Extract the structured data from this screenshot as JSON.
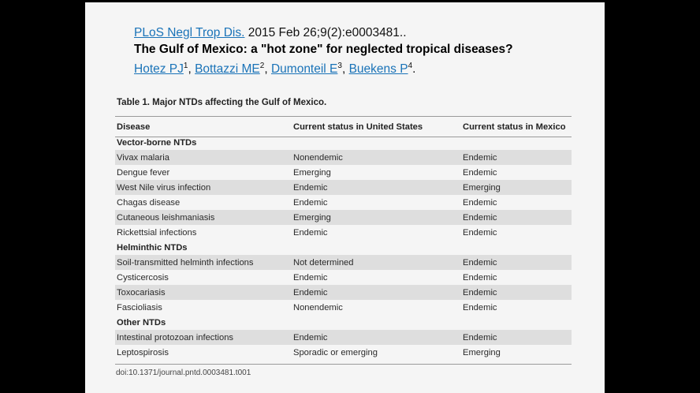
{
  "citation": {
    "journal": "PLoS Negl Trop Dis.",
    "date_ref": " 2015 Feb 26;9(2):e0003481..",
    "title": "The Gulf of Mexico: a \"hot zone\" for neglected tropical diseases?",
    "authors": [
      {
        "name": "Hotez PJ",
        "sup": "1"
      },
      {
        "name": "Bottazzi ME",
        "sup": "2"
      },
      {
        "name": "Dumonteil E",
        "sup": "3"
      },
      {
        "name": "Buekens P",
        "sup": "4"
      }
    ]
  },
  "table": {
    "caption": "Table 1. Major NTDs affecting the Gulf of Mexico.",
    "headers": [
      "Disease",
      "Current status in United States",
      "Current status in Mexico"
    ],
    "groups": [
      {
        "name": "Vector-borne NTDs",
        "rows": [
          [
            "Vivax malaria",
            "Nonendemic",
            "Endemic"
          ],
          [
            "Dengue fever",
            "Emerging",
            "Endemic"
          ],
          [
            "West Nile virus infection",
            "Endemic",
            "Emerging"
          ],
          [
            "Chagas disease",
            "Endemic",
            "Endemic"
          ],
          [
            "Cutaneous leishmaniasis",
            "Emerging",
            "Endemic"
          ],
          [
            "Rickettsial infections",
            "Endemic",
            "Endemic"
          ]
        ]
      },
      {
        "name": "Helminthic NTDs",
        "rows": [
          [
            "Soil-transmitted helminth infections",
            "Not determined",
            "Endemic"
          ],
          [
            "Cysticercosis",
            "Endemic",
            "Endemic"
          ],
          [
            "Toxocariasis",
            "Endemic",
            "Endemic"
          ],
          [
            "Fascioliasis",
            "Nonendemic",
            "Endemic"
          ]
        ]
      },
      {
        "name": "Other NTDs",
        "rows": [
          [
            "Intestinal protozoan infections",
            "Endemic",
            "Endemic"
          ],
          [
            "Leptospirosis",
            "Sporadic or emerging",
            "Emerging"
          ]
        ]
      }
    ],
    "doi": "doi:10.1371/journal.pntd.0003481.t001"
  }
}
